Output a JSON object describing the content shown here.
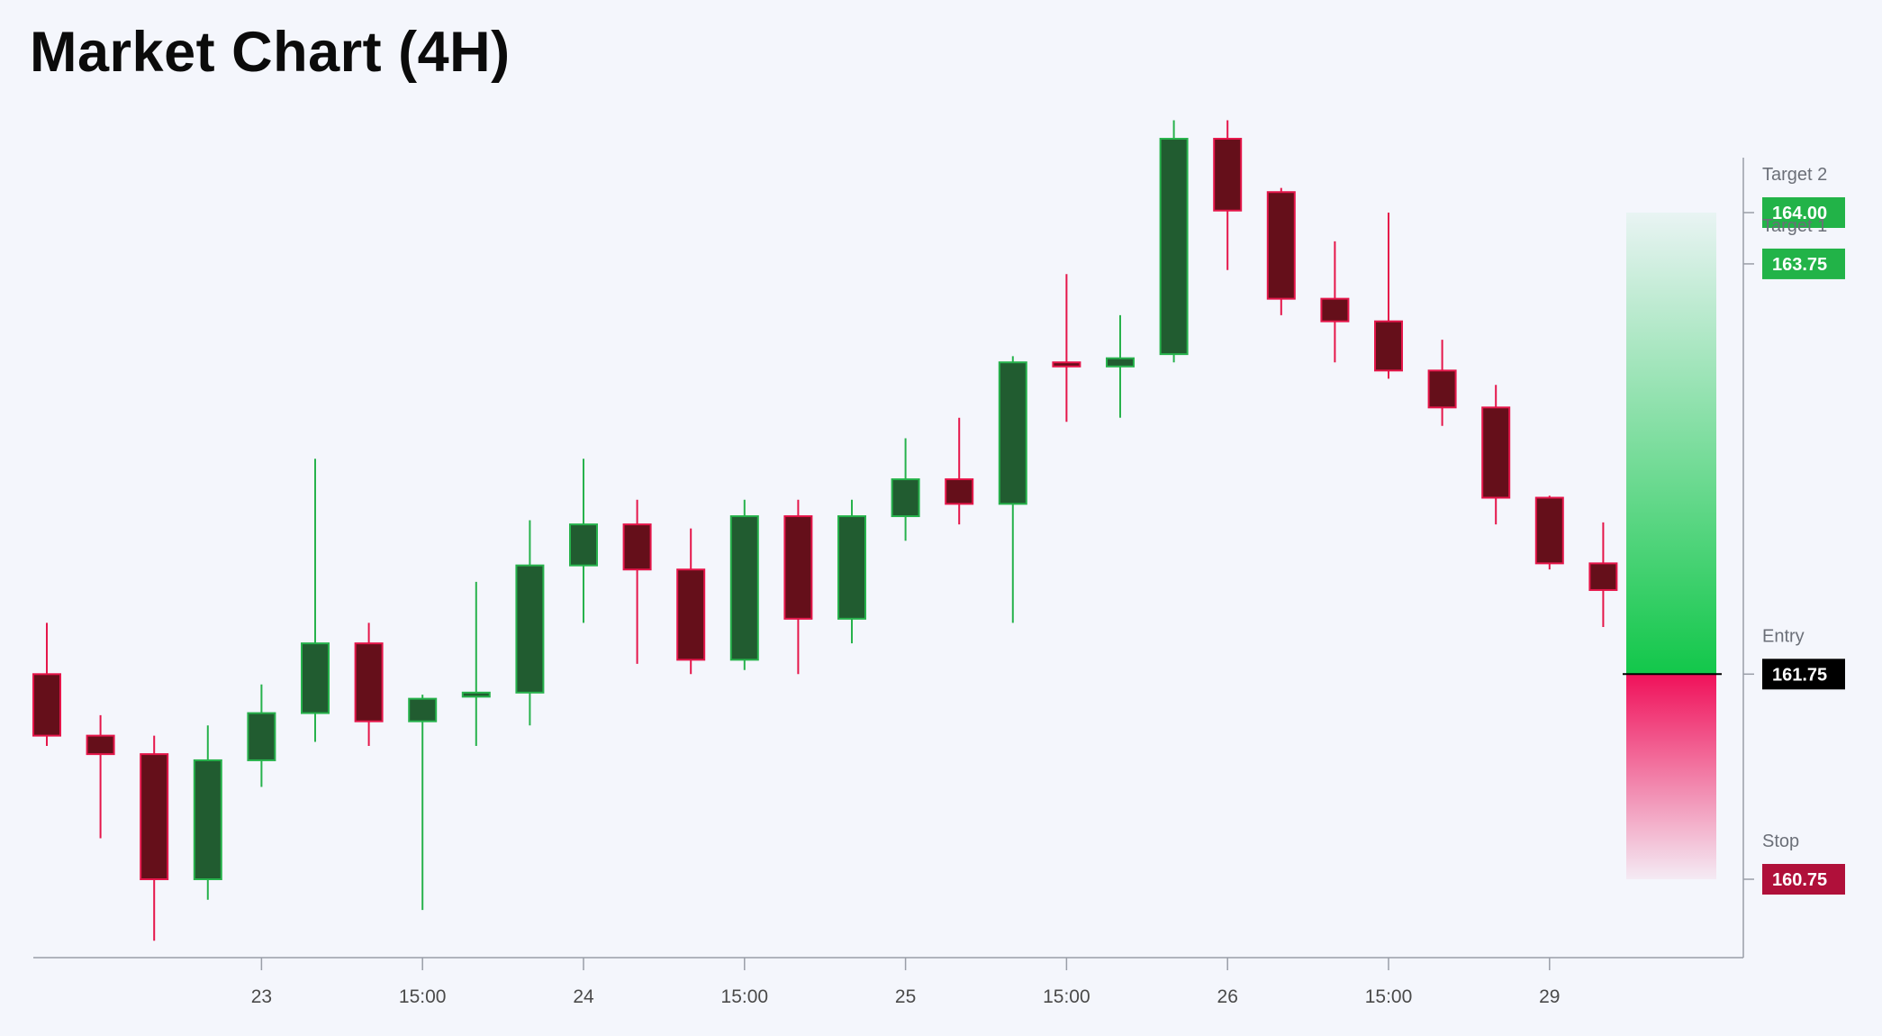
{
  "header": {
    "title": "Market Chart (4H)"
  },
  "colors": {
    "background": "#f4f6fc",
    "bull_fill": "#215c30",
    "bull_stroke": "#27b24c",
    "bear_fill": "#650f1a",
    "bear_stroke": "#e5164a",
    "target_tag": "#22b348",
    "entry_tag": "#000000",
    "stop_tag": "#b0103a",
    "profit_zone": "#12c74a",
    "loss_zone": "#f0115a"
  },
  "chart_data": {
    "type": "candlestick",
    "title": "Market Chart (4H)",
    "y_range": [
      159.2,
      165.2
    ],
    "x_tick_labels": [
      {
        "index": 4,
        "label": "23"
      },
      {
        "index": 7,
        "label": "15:00"
      },
      {
        "index": 10,
        "label": "24"
      },
      {
        "index": 13,
        "label": "15:00"
      },
      {
        "index": 16,
        "label": "25"
      },
      {
        "index": 19,
        "label": "15:00"
      },
      {
        "index": 22,
        "label": "26"
      },
      {
        "index": 25,
        "label": "15:00"
      },
      {
        "index": 28,
        "label": "29"
      }
    ],
    "candles": [
      {
        "open": 161.75,
        "high": 162.0,
        "low": 161.4,
        "close": 161.45
      },
      {
        "open": 161.45,
        "high": 161.55,
        "low": 160.95,
        "close": 161.36
      },
      {
        "open": 161.36,
        "high": 161.45,
        "low": 160.45,
        "close": 160.75
      },
      {
        "open": 160.75,
        "high": 161.5,
        "low": 160.65,
        "close": 161.33
      },
      {
        "open": 161.33,
        "high": 161.7,
        "low": 161.2,
        "close": 161.56
      },
      {
        "open": 161.56,
        "high": 162.8,
        "low": 161.42,
        "close": 161.9
      },
      {
        "open": 161.9,
        "high": 162.0,
        "low": 161.4,
        "close": 161.52
      },
      {
        "open": 161.52,
        "high": 161.65,
        "low": 160.6,
        "close": 161.63
      },
      {
        "open": 161.64,
        "high": 162.2,
        "low": 161.4,
        "close": 161.66
      },
      {
        "open": 161.66,
        "high": 162.5,
        "low": 161.5,
        "close": 162.28
      },
      {
        "open": 162.28,
        "high": 162.8,
        "low": 162.0,
        "close": 162.48
      },
      {
        "open": 162.48,
        "high": 162.6,
        "low": 161.8,
        "close": 162.26
      },
      {
        "open": 162.26,
        "high": 162.46,
        "low": 161.75,
        "close": 161.82
      },
      {
        "open": 161.82,
        "high": 162.6,
        "low": 161.77,
        "close": 162.52
      },
      {
        "open": 162.52,
        "high": 162.6,
        "low": 161.75,
        "close": 162.02
      },
      {
        "open": 162.02,
        "high": 162.6,
        "low": 161.9,
        "close": 162.52
      },
      {
        "open": 162.52,
        "high": 162.9,
        "low": 162.4,
        "close": 162.7
      },
      {
        "open": 162.7,
        "high": 163.0,
        "low": 162.48,
        "close": 162.58
      },
      {
        "open": 162.58,
        "high": 163.3,
        "low": 162.0,
        "close": 163.27
      },
      {
        "open": 163.27,
        "high": 163.7,
        "low": 162.98,
        "close": 163.25
      },
      {
        "open": 163.25,
        "high": 163.5,
        "low": 163.0,
        "close": 163.29
      },
      {
        "open": 163.31,
        "high": 164.45,
        "low": 163.27,
        "close": 164.36
      },
      {
        "open": 164.36,
        "high": 164.45,
        "low": 163.72,
        "close": 164.01
      },
      {
        "open": 164.1,
        "high": 164.12,
        "low": 163.5,
        "close": 163.58
      },
      {
        "open": 163.58,
        "high": 163.86,
        "low": 163.27,
        "close": 163.47
      },
      {
        "open": 163.47,
        "high": 164.0,
        "low": 163.19,
        "close": 163.23
      },
      {
        "open": 163.23,
        "high": 163.38,
        "low": 162.96,
        "close": 163.05
      },
      {
        "open": 163.05,
        "high": 163.16,
        "low": 162.48,
        "close": 162.61
      },
      {
        "open": 162.61,
        "high": 162.62,
        "low": 162.26,
        "close": 162.29
      },
      {
        "open": 162.29,
        "high": 162.49,
        "low": 161.98,
        "close": 162.16
      }
    ],
    "levels": [
      {
        "name": "Target 2",
        "value": 164.0,
        "label": "164.00",
        "kind": "target"
      },
      {
        "name": "Target 1",
        "value": 163.75,
        "label": "163.75",
        "kind": "target"
      },
      {
        "name": "Entry",
        "value": 161.75,
        "label": "161.75",
        "kind": "entry"
      },
      {
        "name": "Stop",
        "value": 160.75,
        "label": "160.75",
        "kind": "stop"
      }
    ],
    "position": {
      "entry": 161.75,
      "target": 164.0,
      "stop": 160.75,
      "side": "long"
    },
    "grid": false,
    "legend": "none"
  }
}
